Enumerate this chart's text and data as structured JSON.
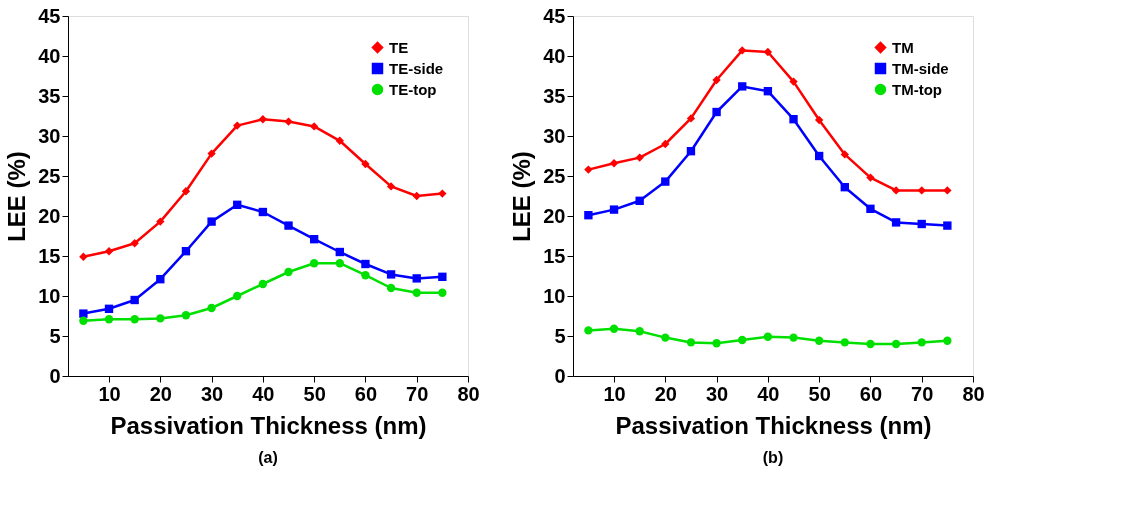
{
  "chart_data": [
    {
      "type": "line",
      "xlabel": "Passivation Thickness (nm)",
      "ylabel": "LEE (%)",
      "annotations": [
        "(a)"
      ],
      "x": [
        5,
        10,
        15,
        20,
        25,
        30,
        35,
        40,
        45,
        50,
        55,
        60,
        65,
        70,
        75
      ],
      "xlim": [
        2,
        80
      ],
      "xticks": [
        10,
        20,
        30,
        40,
        50,
        60,
        70,
        80
      ],
      "ylim": [
        0,
        45
      ],
      "yticks": [
        0,
        5,
        10,
        15,
        20,
        25,
        30,
        35,
        40,
        45
      ],
      "grid": false,
      "legend": "top right",
      "line_style": "solid",
      "series": [
        {
          "name": "TE",
          "color": "#ff0000",
          "marker": "diamond",
          "values": [
            14.9,
            15.6,
            16.6,
            19.3,
            23.1,
            27.8,
            31.3,
            32.1,
            31.8,
            31.2,
            29.4,
            26.5,
            23.7,
            22.5,
            22.8
          ]
        },
        {
          "name": "TE-side",
          "color": "#0000ff",
          "marker": "square",
          "values": [
            7.8,
            8.4,
            9.5,
            12.1,
            15.6,
            19.3,
            21.4,
            20.5,
            18.8,
            17.1,
            15.5,
            14.0,
            12.7,
            12.2,
            12.4
          ]
        },
        {
          "name": "TE-top",
          "color": "#00e000",
          "marker": "circle",
          "values": [
            6.9,
            7.1,
            7.1,
            7.2,
            7.6,
            8.5,
            10.0,
            11.5,
            13.0,
            14.1,
            14.1,
            12.6,
            11.0,
            10.4,
            10.4
          ]
        }
      ]
    },
    {
      "type": "line",
      "xlabel": "Passivation Thickness (nm)",
      "ylabel": "LEE (%)",
      "annotations": [
        "(b)"
      ],
      "x": [
        5,
        10,
        15,
        20,
        25,
        30,
        35,
        40,
        45,
        50,
        55,
        60,
        65,
        70,
        75
      ],
      "xlim": [
        2,
        80
      ],
      "xticks": [
        10,
        20,
        30,
        40,
        50,
        60,
        70,
        80
      ],
      "ylim": [
        0,
        45
      ],
      "yticks": [
        0,
        5,
        10,
        15,
        20,
        25,
        30,
        35,
        40,
        45
      ],
      "grid": false,
      "legend": "top right",
      "line_style": "solid",
      "series": [
        {
          "name": "TM",
          "color": "#ff0000",
          "marker": "diamond",
          "values": [
            25.8,
            26.6,
            27.3,
            29.0,
            32.2,
            37.0,
            40.7,
            40.5,
            36.8,
            32.0,
            27.7,
            24.8,
            23.2,
            23.2,
            23.2
          ]
        },
        {
          "name": "TM-side",
          "color": "#0000ff",
          "marker": "square",
          "values": [
            20.1,
            20.8,
            21.9,
            24.3,
            28.1,
            33.0,
            36.2,
            35.6,
            32.1,
            27.5,
            23.6,
            20.9,
            19.2,
            19.0,
            18.8
          ]
        },
        {
          "name": "TM-top",
          "color": "#00e000",
          "marker": "circle",
          "values": [
            5.7,
            5.9,
            5.6,
            4.8,
            4.2,
            4.1,
            4.5,
            4.9,
            4.8,
            4.4,
            4.2,
            4.0,
            4.0,
            4.2,
            4.4
          ]
        }
      ]
    }
  ]
}
